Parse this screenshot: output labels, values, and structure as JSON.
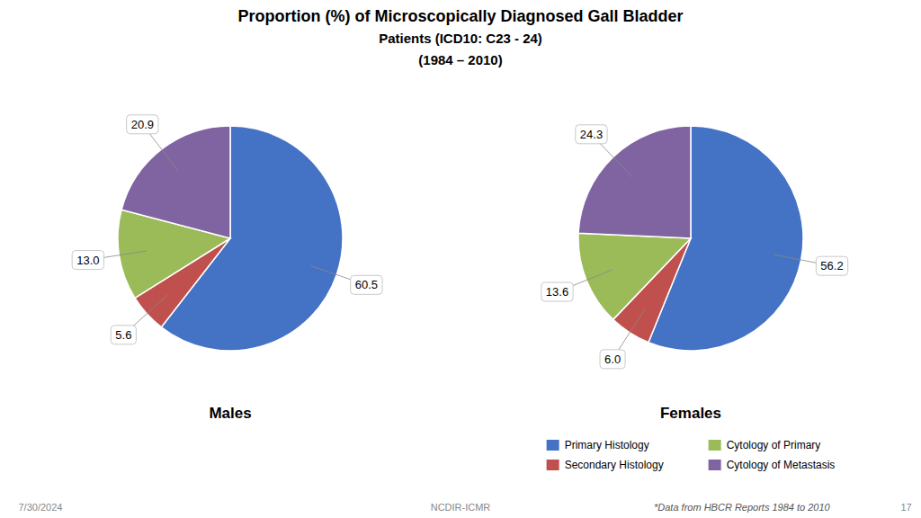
{
  "chart_data": {
    "type": "pie",
    "title": [
      "Proportion (%) of Microscopically Diagnosed Gall Bladder",
      "Patients (ICD10: C23 - 24)",
      "(1984 – 2010)"
    ],
    "categories": [
      "Primary Histology",
      "Secondary Histology",
      "Cytology of Primary",
      "Cytology of Metastasis"
    ],
    "colors": [
      "#4472C4",
      "#C0504D",
      "#9BBB59",
      "#8064A2"
    ],
    "series": [
      {
        "name": "Males",
        "values": [
          60.5,
          5.6,
          13.0,
          20.9
        ],
        "value_labels": [
          "60.5",
          "5.6",
          "13.0",
          "20.9"
        ]
      },
      {
        "name": "Females",
        "values": [
          56.2,
          6.0,
          13.6,
          24.3
        ],
        "value_labels": [
          "56.2",
          "6.0",
          "13.6",
          "24.3"
        ]
      }
    ],
    "data_labels": true,
    "legend": "lower right",
    "annotations": [
      "7/30/2024",
      "NCDIR-ICMR",
      "*Data from HBCR Reports 1984 to 2010",
      "17"
    ]
  }
}
